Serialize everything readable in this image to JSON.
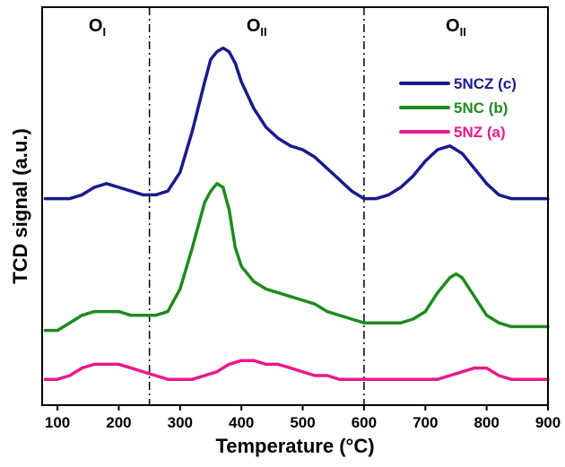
{
  "chart_data": {
    "type": "line",
    "xlabel": "Temperature (°C)",
    "ylabel": "TCD signal (a.u.)",
    "xlim": [
      75,
      900
    ],
    "xticks": [
      100,
      200,
      300,
      400,
      500,
      600,
      700,
      800,
      900
    ],
    "ylim": [
      0,
      100
    ],
    "yticks_shown": false,
    "grid": false,
    "legend_position": "top-right",
    "region_dividers": [
      250,
      600
    ],
    "region_labels": [
      {
        "main": "O",
        "sub": "I",
        "x": 165
      },
      {
        "main": "O",
        "sub": "II",
        "x": 425
      },
      {
        "main": "O",
        "sub": "II",
        "x": 750
      }
    ],
    "series": [
      {
        "name": "5NCZ (c)",
        "color": "#1a1a8c",
        "x": [
          80,
          100,
          120,
          140,
          160,
          180,
          200,
          220,
          240,
          260,
          280,
          300,
          320,
          340,
          350,
          360,
          370,
          380,
          390,
          400,
          420,
          440,
          460,
          480,
          500,
          520,
          540,
          560,
          580,
          600,
          620,
          640,
          660,
          680,
          700,
          720,
          740,
          760,
          780,
          800,
          820,
          840,
          860,
          880,
          900
        ],
        "y": [
          52,
          52,
          52,
          53,
          55,
          56,
          55,
          54,
          53,
          53,
          54,
          59,
          70,
          83,
          89,
          91,
          92,
          91,
          88,
          83,
          76,
          71,
          68,
          66,
          65,
          63,
          60,
          57,
          54,
          52,
          52,
          53,
          55,
          58,
          62,
          65,
          66,
          64,
          60,
          56,
          53,
          52,
          52,
          52,
          52
        ]
      },
      {
        "name": "5NC (b)",
        "color": "#1f8a1f",
        "x": [
          80,
          100,
          120,
          140,
          160,
          180,
          200,
          220,
          240,
          260,
          280,
          300,
          320,
          330,
          340,
          350,
          360,
          370,
          380,
          390,
          400,
          420,
          440,
          460,
          480,
          500,
          520,
          540,
          560,
          580,
          600,
          620,
          640,
          660,
          680,
          700,
          720,
          740,
          750,
          760,
          780,
          800,
          820,
          840,
          860,
          880,
          900
        ],
        "y": [
          17,
          17,
          19,
          21,
          22,
          22,
          22,
          21,
          21,
          21,
          22,
          28,
          39,
          45,
          51,
          54,
          56,
          55,
          49,
          39,
          34,
          30,
          28,
          27,
          26,
          25,
          24,
          22,
          21,
          20,
          19,
          19,
          19,
          19,
          20,
          22,
          27,
          31,
          32,
          31,
          26,
          21,
          19,
          18,
          18,
          18,
          18
        ]
      },
      {
        "name": "5NZ (a)",
        "color": "#e8198b",
        "x": [
          80,
          100,
          120,
          140,
          160,
          180,
          200,
          220,
          240,
          260,
          280,
          300,
          320,
          340,
          360,
          380,
          400,
          420,
          440,
          460,
          480,
          500,
          520,
          540,
          560,
          580,
          600,
          620,
          640,
          660,
          680,
          700,
          720,
          740,
          760,
          780,
          800,
          820,
          840,
          860,
          880,
          900
        ],
        "y": [
          4,
          4,
          5,
          7,
          8,
          8,
          8,
          7,
          6,
          5,
          4,
          4,
          4,
          5,
          6,
          8,
          9,
          9,
          8,
          8,
          7,
          6,
          5,
          5,
          4,
          4,
          4,
          4,
          4,
          4,
          4,
          4,
          4,
          5,
          6,
          7,
          7,
          5,
          4,
          4,
          4,
          4
        ]
      }
    ]
  }
}
